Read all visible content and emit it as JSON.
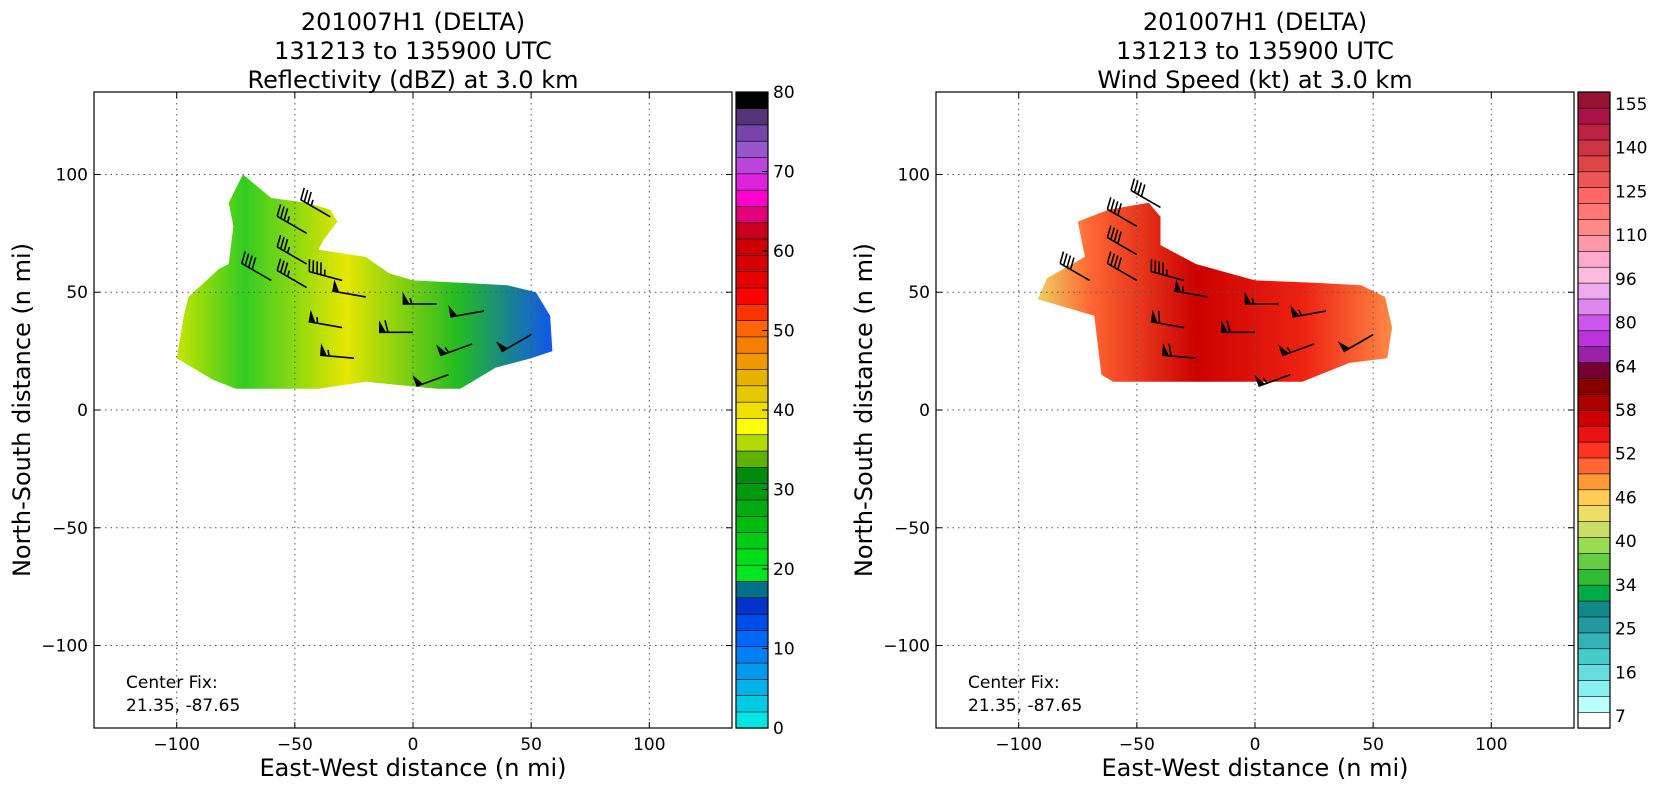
{
  "chart_data": [
    {
      "type": "heatmap",
      "title_lines": [
        "201007H1 (DELTA)",
        "131213 to 135900 UTC",
        "Reflectivity (dBZ) at 3.0 km"
      ],
      "xlabel": "East-West distance (n mi)",
      "ylabel": "North-South distance (n mi)",
      "xlim": [
        -135,
        135
      ],
      "ylim": [
        -135,
        135
      ],
      "xticks": [
        -100,
        -50,
        0,
        50,
        100
      ],
      "yticks": [
        -100,
        -50,
        0,
        50,
        100
      ],
      "xtick_labels": [
        "−100",
        "−50",
        "0",
        "50",
        "100"
      ],
      "ytick_labels": [
        "−100",
        "−50",
        "0",
        "50",
        "100"
      ],
      "grid": true,
      "annotation_lines": [
        "Center Fix:",
        "21.35, -87.65"
      ],
      "colorbar": {
        "min": 0,
        "max": 80,
        "tick_values": [
          0,
          10,
          20,
          30,
          40,
          50,
          60,
          70,
          80
        ],
        "tick_labels": [
          "0",
          "10",
          "20",
          "30",
          "40",
          "50",
          "60",
          "70",
          "80"
        ],
        "colors": [
          "#00e5e5",
          "#00cce5",
          "#00b2e8",
          "#0099ee",
          "#0080f5",
          "#0066f8",
          "#004ce8",
          "#0033cc",
          "#00708a",
          "#00e620",
          "#00dd1a",
          "#00cc16",
          "#00bb12",
          "#00aa10",
          "#009a0e",
          "#008a0c",
          "#5db300",
          "#b3d900",
          "#ffff00",
          "#f0e000",
          "#e6c800",
          "#e8b000",
          "#f09800",
          "#f58000",
          "#ff6600",
          "#ff3300",
          "#ff0000",
          "#e60000",
          "#d60000",
          "#cc0000",
          "#c8001e",
          "#e0007a",
          "#ff00cc",
          "#dd22dd",
          "#bb44dd",
          "#9955cc",
          "#7744aa",
          "#553377",
          "#000000"
        ]
      },
      "echo_region": [
        [
          -72,
          100
        ],
        [
          -60,
          90
        ],
        [
          -45,
          88
        ],
        [
          -35,
          85
        ],
        [
          -32,
          80
        ],
        [
          -38,
          72
        ],
        [
          -40,
          68
        ],
        [
          -20,
          65
        ],
        [
          -10,
          58
        ],
        [
          0,
          55
        ],
        [
          20,
          54
        ],
        [
          40,
          53
        ],
        [
          52,
          50
        ],
        [
          58,
          40
        ],
        [
          59,
          25
        ],
        [
          50,
          22
        ],
        [
          35,
          18
        ],
        [
          20,
          9
        ],
        [
          10,
          9
        ],
        [
          -10,
          11
        ],
        [
          -20,
          12
        ],
        [
          -40,
          9
        ],
        [
          -75,
          9
        ],
        [
          -85,
          13
        ],
        [
          -100,
          22
        ],
        [
          -97,
          40
        ],
        [
          -95,
          48
        ],
        [
          -82,
          60
        ],
        [
          -78,
          62
        ],
        [
          -76,
          78
        ],
        [
          -78,
          88
        ]
      ],
      "barbs": [
        {
          "x": -35,
          "y": 82,
          "dir": 300,
          "kt": 35
        },
        {
          "x": -45,
          "y": 75,
          "dir": 300,
          "kt": 35
        },
        {
          "x": -45,
          "y": 62,
          "dir": 300,
          "kt": 35
        },
        {
          "x": -45,
          "y": 52,
          "dir": 300,
          "kt": 35
        },
        {
          "x": -60,
          "y": 55,
          "dir": 300,
          "kt": 40
        },
        {
          "x": -30,
          "y": 55,
          "dir": 285,
          "kt": 45
        },
        {
          "x": -20,
          "y": 48,
          "dir": 280,
          "kt": 50
        },
        {
          "x": 10,
          "y": 45,
          "dir": 270,
          "kt": 55
        },
        {
          "x": 30,
          "y": 42,
          "dir": 260,
          "kt": 50
        },
        {
          "x": 50,
          "y": 32,
          "dir": 240,
          "kt": 50
        },
        {
          "x": -30,
          "y": 35,
          "dir": 280,
          "kt": 55
        },
        {
          "x": 0,
          "y": 33,
          "dir": 270,
          "kt": 60
        },
        {
          "x": 25,
          "y": 28,
          "dir": 250,
          "kt": 55
        },
        {
          "x": -25,
          "y": 22,
          "dir": 275,
          "kt": 55
        },
        {
          "x": 15,
          "y": 15,
          "dir": 250,
          "kt": 50
        }
      ]
    },
    {
      "type": "heatmap",
      "title_lines": [
        "201007H1 (DELTA)",
        "131213 to 135900 UTC",
        "Wind Speed (kt) at 3.0 km"
      ],
      "xlabel": "East-West distance (n mi)",
      "ylabel": "North-South distance (n mi)",
      "xlim": [
        -135,
        135
      ],
      "ylim": [
        -135,
        135
      ],
      "xticks": [
        -100,
        -50,
        0,
        50,
        100
      ],
      "yticks": [
        -100,
        -50,
        0,
        50,
        100
      ],
      "xtick_labels": [
        "−100",
        "−50",
        "0",
        "50",
        "100"
      ],
      "ytick_labels": [
        "−100",
        "−50",
        "0",
        "50",
        "100"
      ],
      "grid": true,
      "annotation_lines": [
        "Center Fix:",
        "21.35, -87.65"
      ],
      "colorbar": {
        "tick_labels": [
          "7",
          "16",
          "25",
          "34",
          "40",
          "46",
          "52",
          "58",
          "64",
          "80",
          "96",
          "110",
          "125",
          "140",
          "155"
        ],
        "colors": [
          "#ffffff",
          "#bbffff",
          "#88f0f0",
          "#66dde0",
          "#44cccc",
          "#33b2b8",
          "#2299a0",
          "#118888",
          "#00aa44",
          "#33bb33",
          "#66cc44",
          "#99dd55",
          "#ccdd66",
          "#eee066",
          "#ffcc55",
          "#ff9933",
          "#ff6633",
          "#ff3322",
          "#ee1111",
          "#cc0000",
          "#aa0000",
          "#880000",
          "#770033",
          "#9922aa",
          "#bb33dd",
          "#cc55ee",
          "#dd88ee",
          "#eeaaee",
          "#ffbbdd",
          "#ffaacc",
          "#ff99aa",
          "#ff8888",
          "#ff7777",
          "#ff6666",
          "#ee5555",
          "#dd4444",
          "#cc3344",
          "#bb2244",
          "#aa1144",
          "#991133"
        ]
      },
      "echo_region": [
        [
          -62,
          85
        ],
        [
          -45,
          88
        ],
        [
          -40,
          82
        ],
        [
          -40,
          70
        ],
        [
          -25,
          62
        ],
        [
          0,
          55
        ],
        [
          25,
          54
        ],
        [
          45,
          53
        ],
        [
          55,
          48
        ],
        [
          58,
          35
        ],
        [
          56,
          22
        ],
        [
          40,
          20
        ],
        [
          20,
          12
        ],
        [
          -20,
          12
        ],
        [
          -60,
          12
        ],
        [
          -65,
          15
        ],
        [
          -68,
          40
        ],
        [
          -85,
          45
        ],
        [
          -92,
          47
        ],
        [
          -88,
          56
        ],
        [
          -72,
          65
        ],
        [
          -75,
          80
        ]
      ],
      "barbs": [
        {
          "x": -40,
          "y": 86,
          "dir": 300,
          "kt": 40
        },
        {
          "x": -50,
          "y": 78,
          "dir": 300,
          "kt": 40
        },
        {
          "x": -50,
          "y": 66,
          "dir": 300,
          "kt": 40
        },
        {
          "x": -50,
          "y": 55,
          "dir": 300,
          "kt": 40
        },
        {
          "x": -70,
          "y": 55,
          "dir": 300,
          "kt": 40
        },
        {
          "x": -30,
          "y": 55,
          "dir": 285,
          "kt": 45
        },
        {
          "x": -20,
          "y": 48,
          "dir": 280,
          "kt": 55
        },
        {
          "x": 10,
          "y": 45,
          "dir": 270,
          "kt": 55
        },
        {
          "x": 30,
          "y": 42,
          "dir": 260,
          "kt": 55
        },
        {
          "x": 50,
          "y": 32,
          "dir": 240,
          "kt": 50
        },
        {
          "x": -30,
          "y": 35,
          "dir": 280,
          "kt": 60
        },
        {
          "x": 0,
          "y": 33,
          "dir": 270,
          "kt": 60
        },
        {
          "x": 25,
          "y": 28,
          "dir": 250,
          "kt": 55
        },
        {
          "x": -25,
          "y": 22,
          "dir": 275,
          "kt": 60
        },
        {
          "x": 15,
          "y": 15,
          "dir": 250,
          "kt": 55
        }
      ]
    }
  ]
}
